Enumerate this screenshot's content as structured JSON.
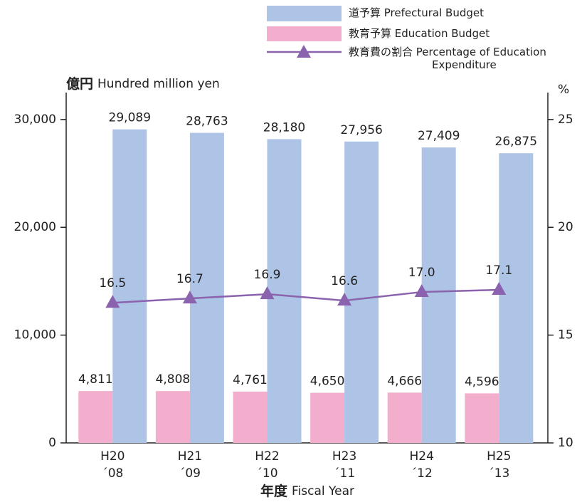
{
  "chart_data": {
    "type": "bar",
    "ylabel": {
      "ja": "億円",
      "en": "Hundred million yen"
    },
    "y2label": "%",
    "xlabel": {
      "ja": "年度",
      "en": "Fiscal Year"
    },
    "categories": [
      [
        "H20",
        "´08"
      ],
      [
        "H21",
        "´09"
      ],
      [
        "H22",
        "´10"
      ],
      [
        "H23",
        "´11"
      ],
      [
        "H24",
        "´12"
      ],
      [
        "H25",
        "´13"
      ]
    ],
    "series": [
      {
        "name": "道予算 Prefectural Budget",
        "color": "#aec4e6",
        "values": [
          29089,
          28763,
          28180,
          27956,
          27409,
          26875
        ],
        "value_labels": [
          "29,089",
          "28,763",
          "28,180",
          "27,956",
          "27,409",
          "26,875"
        ]
      },
      {
        "name": "教育予算 Education Budget",
        "color": "#f4aecd",
        "values": [
          4811,
          4808,
          4761,
          4650,
          4666,
          4596
        ],
        "value_labels": [
          "4,811",
          "4,808",
          "4,761",
          "4,650",
          "4,666",
          "4,596"
        ]
      },
      {
        "name": "教育費の割合 Percentage of Education Expenditure",
        "color": "#8a62ae",
        "type": "line",
        "axis": "y2",
        "values": [
          16.5,
          16.7,
          16.9,
          16.6,
          17.0,
          17.1
        ],
        "value_labels": [
          "16.5",
          "16.7",
          "16.9",
          "16.6",
          "17.0",
          "17.1"
        ]
      }
    ],
    "ylim": [
      0,
      32500
    ],
    "yticks": [
      0,
      {
        "value": 10000,
        "label": "10,000"
      },
      {
        "value": 20000,
        "label": "20,000"
      },
      {
        "value": 30000,
        "label": "30,000"
      }
    ],
    "y2lim": [
      10,
      26.25
    ],
    "y2ticks": [
      10,
      15,
      20,
      25
    ]
  }
}
